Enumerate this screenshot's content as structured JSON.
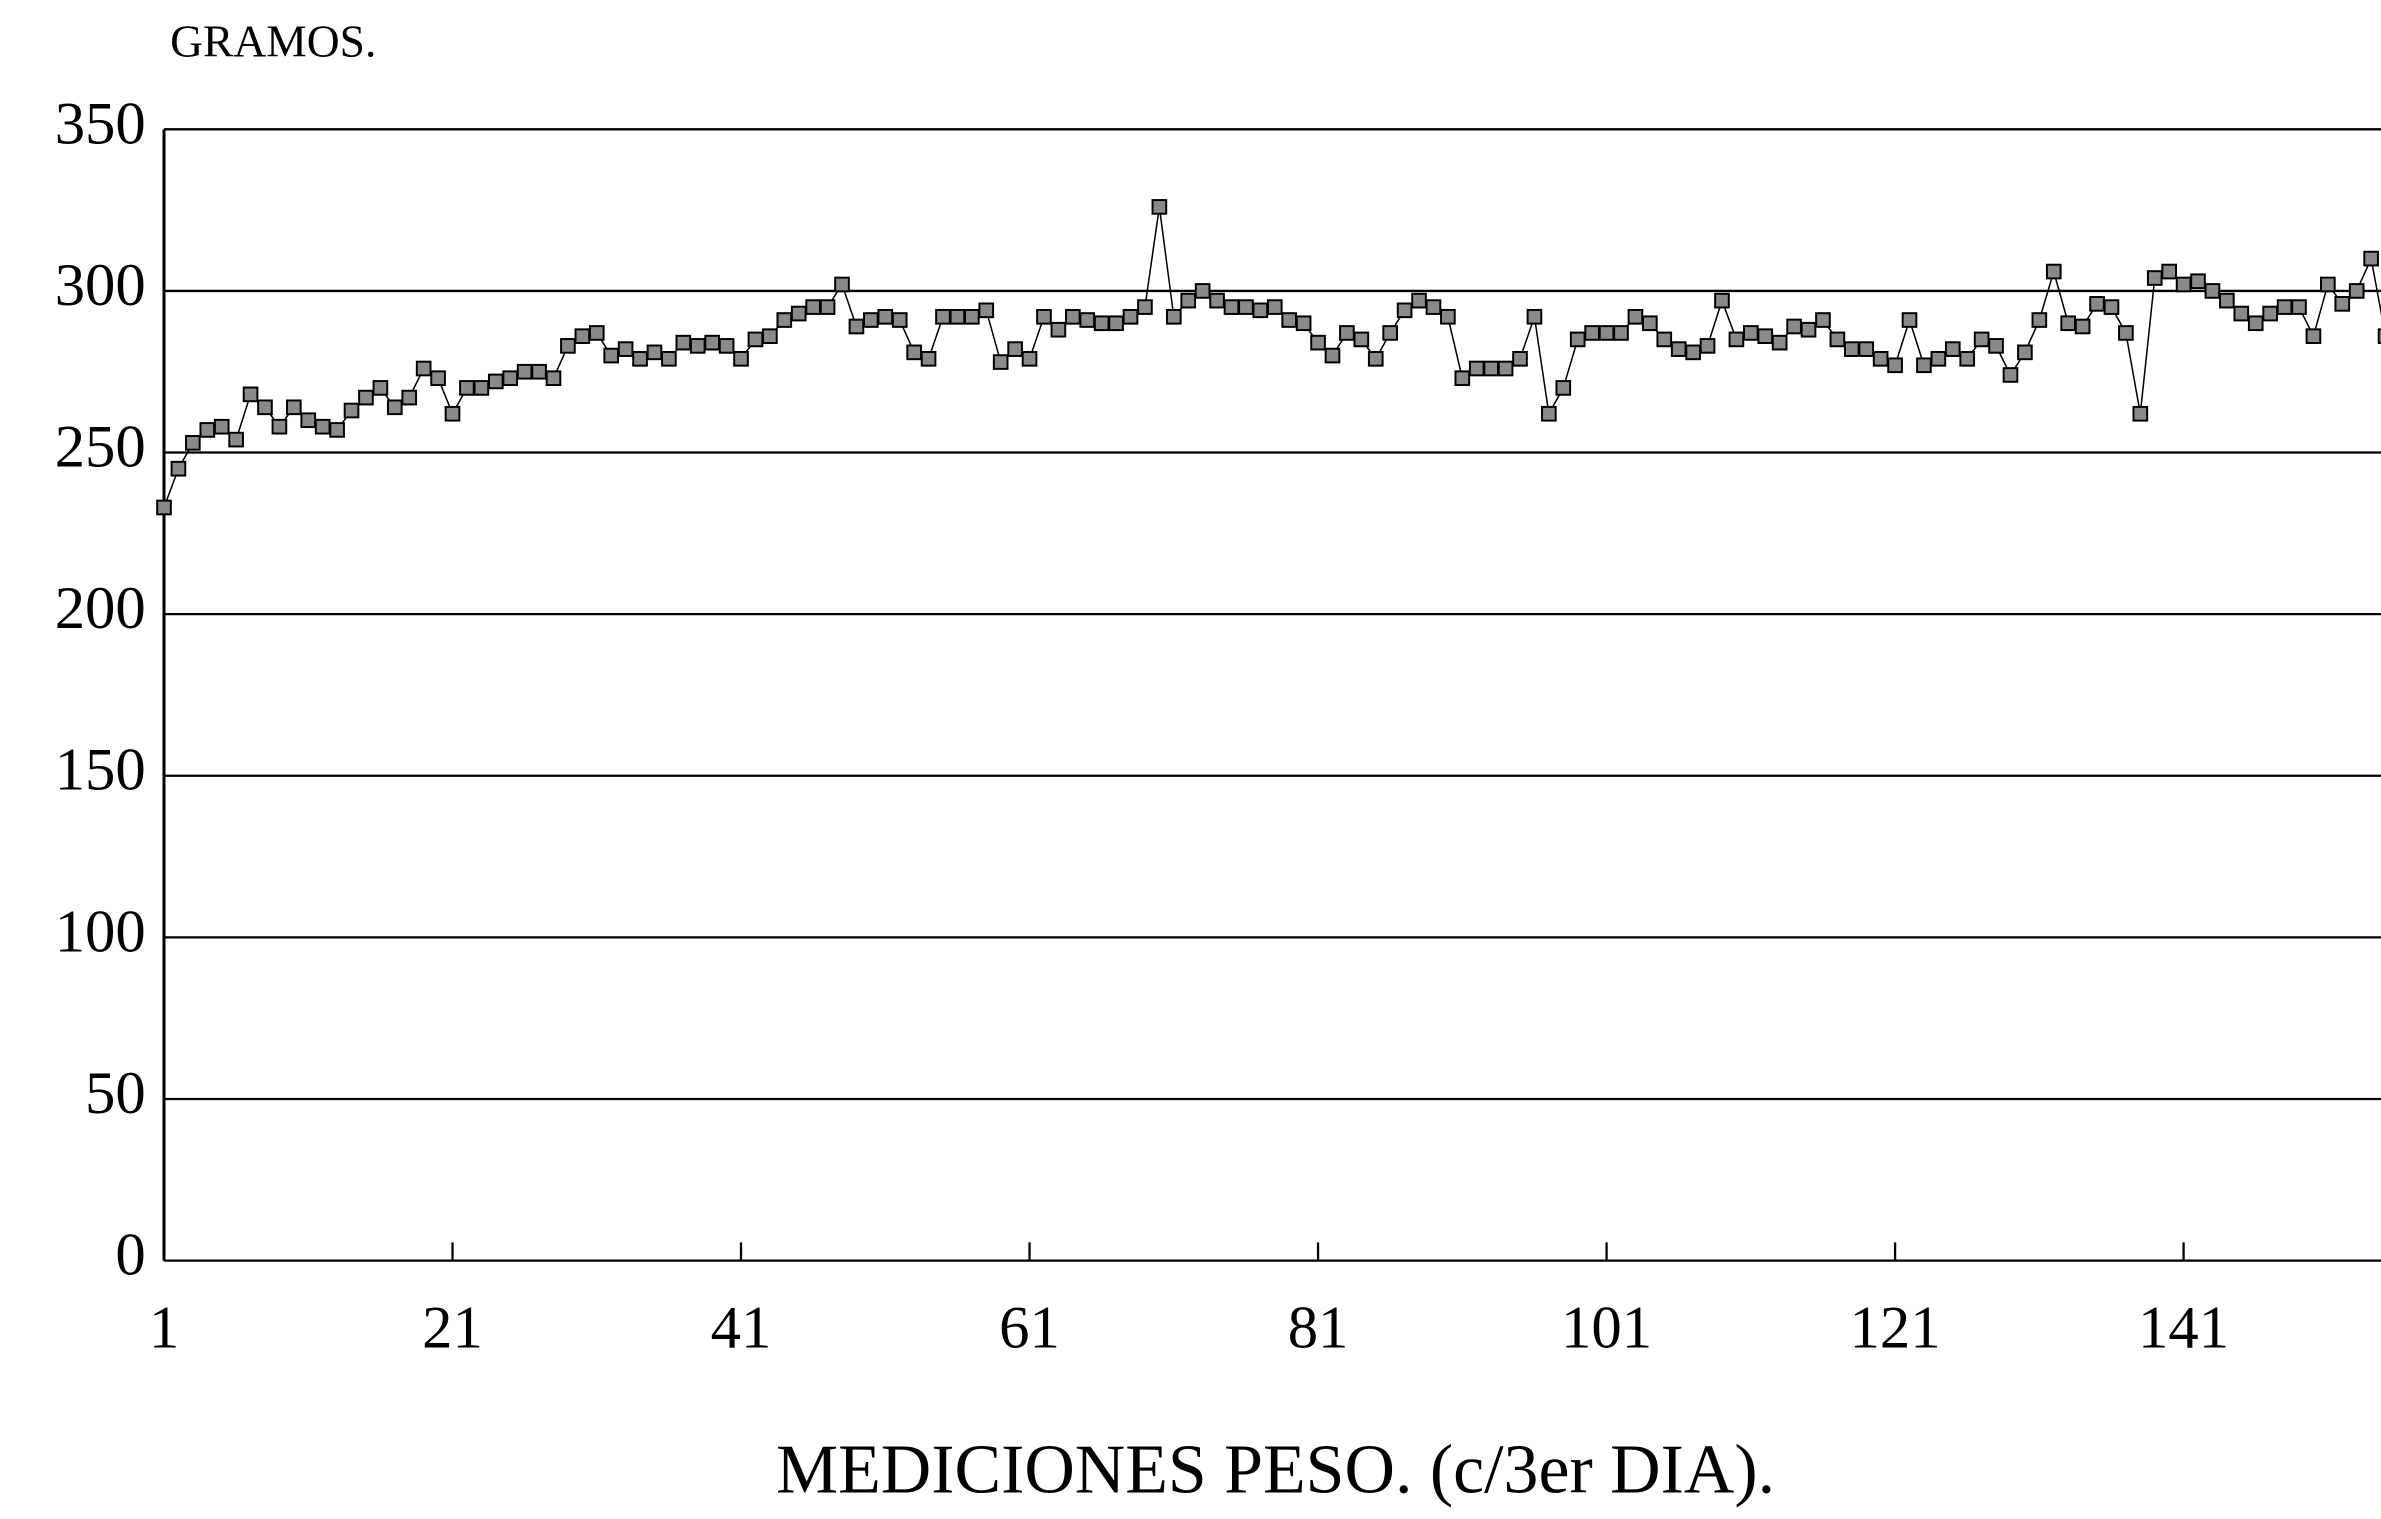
{
  "chart_data": {
    "type": "line",
    "ylabel": "GRAMOS.",
    "xlabel": "MEDICIONES PESO. (c/3er DIA).",
    "color": "#000000",
    "marker_fill": "#8a8a8a",
    "grid": true,
    "xlim": [
      1,
      155
    ],
    "ylim": [
      0,
      350
    ],
    "xticks": [
      1,
      21,
      41,
      61,
      81,
      101,
      121,
      141
    ],
    "yticks": [
      0,
      50,
      100,
      150,
      200,
      250,
      300,
      350
    ],
    "x": [
      1,
      2,
      3,
      4,
      5,
      6,
      7,
      8,
      9,
      10,
      11,
      12,
      13,
      14,
      15,
      16,
      17,
      18,
      19,
      20,
      21,
      22,
      23,
      24,
      25,
      26,
      27,
      28,
      29,
      30,
      31,
      32,
      33,
      34,
      35,
      36,
      37,
      38,
      39,
      40,
      41,
      42,
      43,
      44,
      45,
      46,
      47,
      48,
      49,
      50,
      51,
      52,
      53,
      54,
      55,
      56,
      57,
      58,
      59,
      60,
      61,
      62,
      63,
      64,
      65,
      66,
      67,
      68,
      69,
      70,
      71,
      72,
      73,
      74,
      75,
      76,
      77,
      78,
      79,
      80,
      81,
      82,
      83,
      84,
      85,
      86,
      87,
      88,
      89,
      90,
      91,
      92,
      93,
      94,
      95,
      96,
      97,
      98,
      99,
      100,
      101,
      102,
      103,
      104,
      105,
      106,
      107,
      108,
      109,
      110,
      111,
      112,
      113,
      114,
      115,
      116,
      117,
      118,
      119,
      120,
      121,
      122,
      123,
      124,
      125,
      126,
      127,
      128,
      129,
      130,
      131,
      132,
      133,
      134,
      135,
      136,
      137,
      138,
      139,
      140,
      141,
      142,
      143,
      144,
      145,
      146,
      147,
      148,
      149,
      150,
      151,
      152,
      153,
      154,
      155
    ],
    "values": [
      233,
      245,
      253,
      257,
      258,
      254,
      268,
      264,
      258,
      264,
      260,
      258,
      257,
      263,
      267,
      270,
      264,
      267,
      276,
      273,
      262,
      270,
      270,
      272,
      273,
      275,
      275,
      273,
      283,
      286,
      287,
      280,
      282,
      279,
      281,
      279,
      284,
      283,
      284,
      283,
      279,
      285,
      286,
      291,
      293,
      295,
      295,
      302,
      289,
      291,
      292,
      291,
      281,
      279,
      292,
      292,
      292,
      294,
      278,
      282,
      279,
      292,
      288,
      292,
      291,
      290,
      290,
      292,
      295,
      326,
      292,
      297,
      300,
      297,
      295,
      295,
      294,
      295,
      291,
      290,
      284,
      280,
      287,
      285,
      279,
      287,
      294,
      297,
      295,
      292,
      273,
      276,
      276,
      276,
      279,
      292,
      262,
      270,
      285,
      287,
      287,
      287,
      292,
      290,
      285,
      282,
      281,
      283,
      297,
      285,
      287,
      286,
      284,
      289,
      288,
      291,
      285,
      282,
      282,
      279,
      277,
      291,
      277,
      279,
      282,
      279,
      285,
      283,
      274,
      281,
      291,
      306,
      290,
      289,
      296,
      295,
      287,
      262,
      304,
      306,
      302,
      303,
      300,
      297,
      293,
      290,
      293,
      295,
      295,
      286,
      302,
      296,
      300,
      310,
      286
    ]
  }
}
